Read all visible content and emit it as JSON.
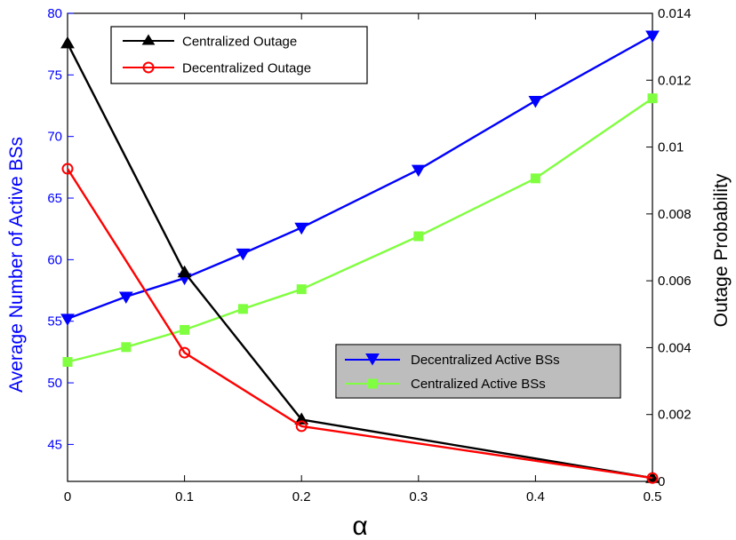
{
  "chart_data": {
    "type": "line",
    "xlabel": "α",
    "y_left_label": "Average Number of Active BSs",
    "y_right_label": "Outage Probability",
    "xlim": [
      0,
      0.5
    ],
    "y_left_lim": [
      42,
      80
    ],
    "y_right_lim": [
      0,
      0.014
    ],
    "x_ticks": [
      "0",
      "0.1",
      "0.2",
      "0.3",
      "0.4",
      "0.5"
    ],
    "y_left_ticks": [
      "45",
      "50",
      "55",
      "60",
      "65",
      "70",
      "75",
      "80"
    ],
    "y_right_ticks": [
      "0",
      "0.002",
      "0.004",
      "0.006",
      "0.008",
      "0.01",
      "0.012",
      "0.014"
    ],
    "grid": false,
    "series": [
      {
        "name": "Centralized Outage",
        "axis": "right",
        "color": "#000000",
        "marker": "triangle-up",
        "x": [
          0,
          0.1,
          0.2,
          0.5
        ],
        "y": [
          0.0131,
          0.00625,
          0.00185,
          0.0001
        ]
      },
      {
        "name": "Decentralized Outage",
        "axis": "right",
        "color": "#ff0000",
        "marker": "circle",
        "x": [
          0,
          0.1,
          0.2,
          0.5
        ],
        "y": [
          0.00935,
          0.00385,
          0.00165,
          0.0001
        ]
      },
      {
        "name": "Decentralized Active BSs",
        "axis": "left",
        "color": "#0000ff",
        "marker": "triangle-down",
        "x": [
          0,
          0.05,
          0.1,
          0.15,
          0.2,
          0.3,
          0.4,
          0.5
        ],
        "y": [
          55.2,
          57.0,
          58.5,
          60.5,
          62.6,
          67.3,
          72.9,
          78.2
        ]
      },
      {
        "name": "Centralized Active BSs",
        "axis": "left",
        "color": "#7fff3f",
        "marker": "square",
        "x": [
          0,
          0.05,
          0.1,
          0.15,
          0.2,
          0.3,
          0.4,
          0.5
        ],
        "y": [
          51.7,
          52.9,
          54.3,
          56.0,
          57.6,
          61.9,
          66.6,
          73.1
        ]
      }
    ],
    "legends": [
      {
        "placement": "top-left",
        "entries": [
          "Centralized Outage",
          "Decentralized Outage"
        ]
      },
      {
        "placement": "center-right",
        "entries": [
          "Decentralized Active BSs",
          "Centralized Active BSs"
        ]
      }
    ]
  }
}
